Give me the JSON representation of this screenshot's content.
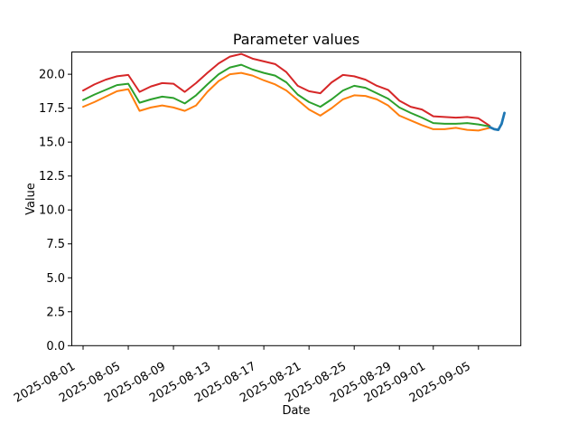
{
  "chart_data": {
    "type": "line",
    "title": "Parameter values",
    "xlabel": "Date",
    "ylabel": "Value",
    "background": "#ffffff",
    "spine_color": "#000000",
    "text_color": "#000000",
    "grid": false,
    "legend": null,
    "x_unit": "days since 2025-08-01",
    "start_date": "2025-08-01",
    "xlim": [
      -1,
      38.75
    ],
    "ylim": [
      0,
      21.64
    ],
    "yticks": {
      "values": [
        0,
        2.5,
        5,
        7.5,
        10,
        12.5,
        15,
        17.5,
        20
      ],
      "labels": [
        "0.0",
        "2.5",
        "5.0",
        "7.5",
        "10.0",
        "12.5",
        "15.0",
        "17.5",
        "20.0"
      ]
    },
    "xticks": {
      "day_offsets": [
        0,
        4,
        8,
        12,
        16,
        20,
        24,
        28,
        31,
        35
      ],
      "labels": [
        "2025-08-01",
        "2025-08-05",
        "2025-08-09",
        "2025-08-13",
        "2025-08-17",
        "2025-08-21",
        "2025-08-25",
        "2025-08-29",
        "2025-09-01",
        "2025-09-05"
      ],
      "rotation_deg": 30
    },
    "series": [
      {
        "name": "red-line",
        "color": "#d62728",
        "linewidth": 2,
        "x": [
          0,
          1,
          2,
          3,
          4,
          5,
          6,
          7,
          8,
          9,
          10,
          11,
          12,
          13,
          14,
          15,
          16,
          17,
          18,
          19,
          20,
          21,
          22,
          23,
          24,
          25,
          26,
          27,
          28,
          29,
          30,
          31,
          32,
          33,
          34,
          35,
          36
        ],
        "y": [
          18.8,
          19.25,
          19.6,
          19.85,
          19.95,
          18.7,
          19.1,
          19.35,
          19.3,
          18.7,
          19.35,
          20.1,
          20.8,
          21.3,
          21.5,
          21.15,
          20.95,
          20.75,
          20.15,
          19.15,
          18.75,
          18.6,
          19.4,
          19.95,
          19.85,
          19.6,
          19.15,
          18.85,
          18.05,
          17.6,
          17.4,
          16.9,
          16.85,
          16.8,
          16.85,
          16.75,
          16.2
        ]
      },
      {
        "name": "green-line",
        "color": "#2ca02c",
        "linewidth": 2,
        "x": [
          0,
          1,
          2,
          3,
          4,
          5,
          6,
          7,
          8,
          9,
          10,
          11,
          12,
          13,
          14,
          15,
          16,
          17,
          18,
          19,
          20,
          21,
          22,
          23,
          24,
          25,
          26,
          27,
          28,
          29,
          30,
          31,
          32,
          33,
          34,
          35,
          36
        ],
        "y": [
          18.1,
          18.5,
          18.85,
          19.2,
          19.3,
          17.9,
          18.15,
          18.35,
          18.25,
          17.85,
          18.45,
          19.25,
          20.0,
          20.5,
          20.7,
          20.35,
          20.1,
          19.9,
          19.4,
          18.5,
          17.95,
          17.6,
          18.15,
          18.8,
          19.15,
          19.0,
          18.6,
          18.2,
          17.55,
          17.15,
          16.8,
          16.4,
          16.35,
          16.35,
          16.4,
          16.3,
          16.15
        ]
      },
      {
        "name": "orange-line",
        "color": "#ff7f0e",
        "linewidth": 2,
        "x": [
          0,
          1,
          2,
          3,
          4,
          5,
          6,
          7,
          8,
          9,
          10,
          11,
          12,
          13,
          14,
          15,
          16,
          17,
          18,
          19,
          20,
          21,
          22,
          23,
          24,
          25,
          26,
          27,
          28,
          29,
          30,
          31,
          32,
          33,
          34,
          35,
          36
        ],
        "y": [
          17.6,
          17.95,
          18.35,
          18.75,
          18.9,
          17.3,
          17.55,
          17.7,
          17.55,
          17.3,
          17.7,
          18.7,
          19.5,
          20.0,
          20.1,
          19.9,
          19.55,
          19.25,
          18.8,
          18.1,
          17.4,
          16.95,
          17.5,
          18.15,
          18.45,
          18.4,
          18.15,
          17.7,
          16.95,
          16.6,
          16.25,
          15.95,
          15.95,
          16.05,
          15.9,
          15.85,
          16.05
        ]
      },
      {
        "name": "blue-line",
        "color": "#1f77b4",
        "linewidth": 2.8,
        "x": [
          36.0,
          36.4,
          36.75,
          37.05,
          37.3
        ],
        "y": [
          16.1,
          15.95,
          15.9,
          16.35,
          17.15
        ]
      }
    ]
  }
}
